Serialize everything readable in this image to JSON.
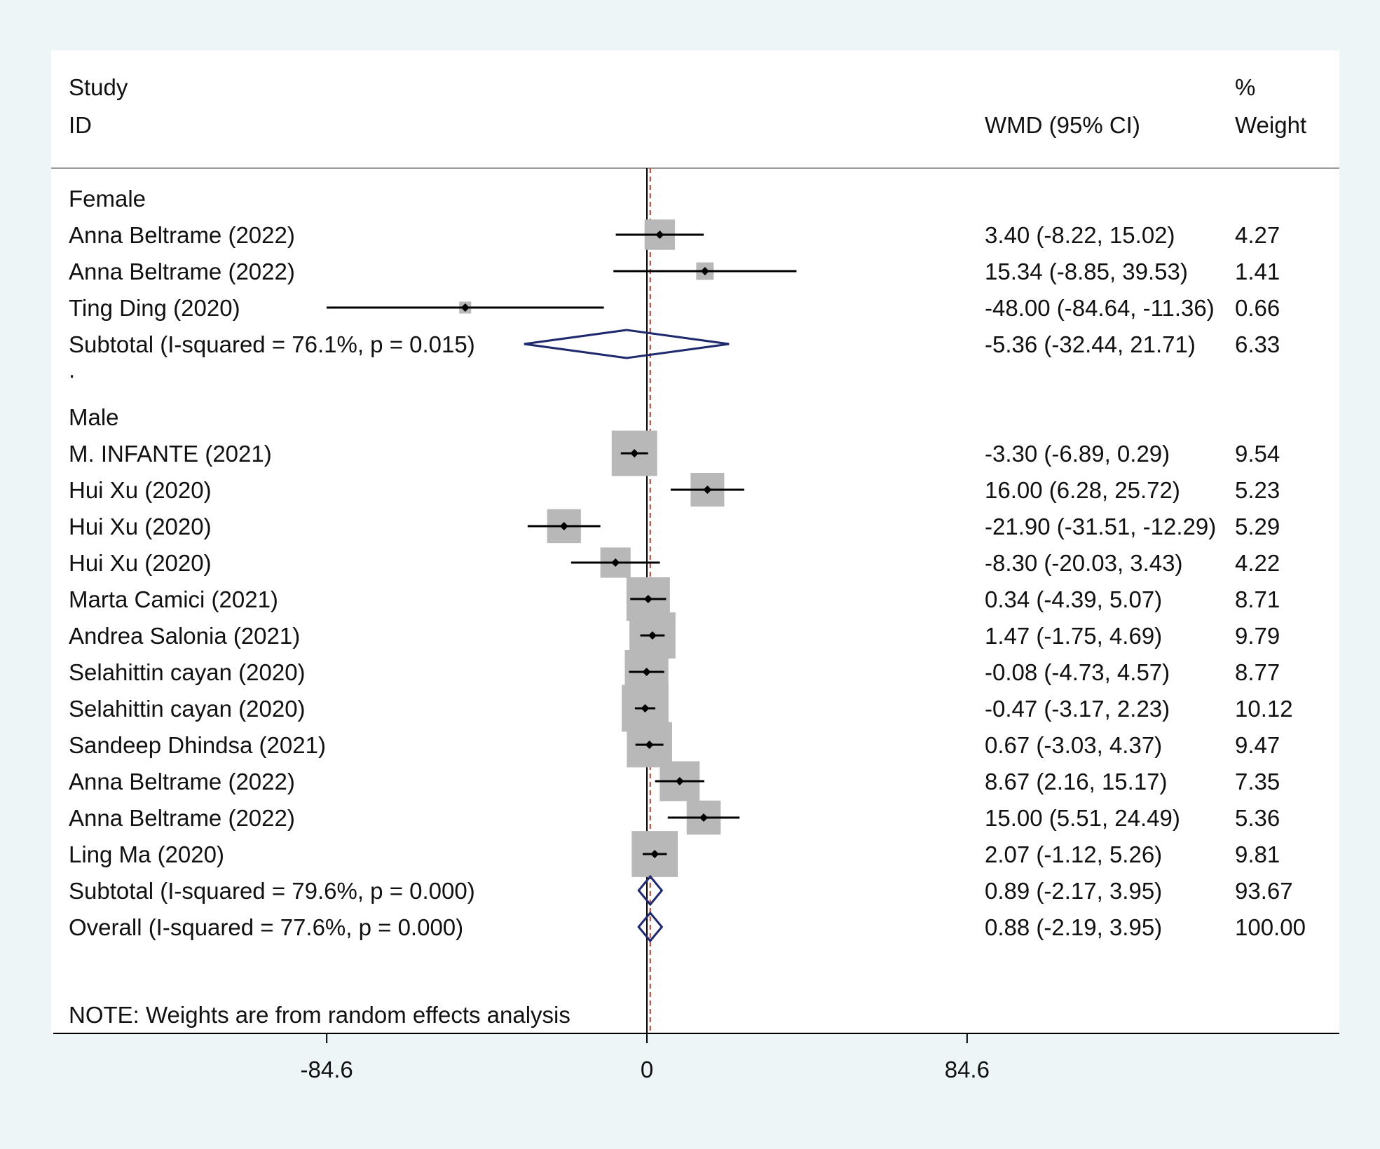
{
  "chart_data": {
    "type": "forest",
    "header": {
      "study_line1": "Study",
      "study_line2": "ID",
      "effect_label": "WMD (95% CI)",
      "weight_line1": "%",
      "weight_line2": "Weight"
    },
    "groups": [
      {
        "name": "Female",
        "studies": [
          {
            "label": "Anna Beltrame (2022)",
            "est": 3.4,
            "lo": -8.22,
            "hi": 15.02,
            "ci_text": "3.40 (-8.22, 15.02)",
            "weight": "4.27"
          },
          {
            "label": "Anna Beltrame (2022)",
            "est": 15.34,
            "lo": -8.85,
            "hi": 39.53,
            "ci_text": "15.34 (-8.85, 39.53)",
            "weight": "1.41"
          },
          {
            "label": "Ting Ding (2020)",
            "est": -48.0,
            "lo": -84.64,
            "hi": -11.36,
            "ci_text": "-48.00 (-84.64, -11.36)",
            "weight": "0.66"
          }
        ],
        "subtotal": {
          "label": "Subtotal  (I-squared = 76.1%, p = 0.015)",
          "est": -5.36,
          "lo": -32.44,
          "hi": 21.71,
          "ci_text": "-5.36 (-32.44, 21.71)",
          "weight": "6.33"
        }
      },
      {
        "name": "Male",
        "studies": [
          {
            "label": "M. INFANTE (2021)",
            "est": -3.3,
            "lo": -6.89,
            "hi": 0.29,
            "ci_text": "-3.30 (-6.89, 0.29)",
            "weight": "9.54"
          },
          {
            "label": "Hui Xu (2020)",
            "est": 16.0,
            "lo": 6.28,
            "hi": 25.72,
            "ci_text": "16.00 (6.28, 25.72)",
            "weight": "5.23"
          },
          {
            "label": "Hui Xu (2020)",
            "est": -21.9,
            "lo": -31.51,
            "hi": -12.29,
            "ci_text": "-21.90 (-31.51, -12.29)",
            "weight": "5.29"
          },
          {
            "label": "Hui Xu (2020)",
            "est": -8.3,
            "lo": -20.03,
            "hi": 3.43,
            "ci_text": "-8.30 (-20.03, 3.43)",
            "weight": "4.22"
          },
          {
            "label": "Marta Camici (2021)",
            "est": 0.34,
            "lo": -4.39,
            "hi": 5.07,
            "ci_text": "0.34 (-4.39, 5.07)",
            "weight": "8.71"
          },
          {
            "label": "Andrea Salonia (2021)",
            "est": 1.47,
            "lo": -1.75,
            "hi": 4.69,
            "ci_text": "1.47 (-1.75, 4.69)",
            "weight": "9.79"
          },
          {
            "label": "Selahittin cayan (2020)",
            "est": -0.08,
            "lo": -4.73,
            "hi": 4.57,
            "ci_text": "-0.08 (-4.73, 4.57)",
            "weight": "8.77"
          },
          {
            "label": "Selahittin cayan (2020)",
            "est": -0.47,
            "lo": -3.17,
            "hi": 2.23,
            "ci_text": "-0.47 (-3.17, 2.23)",
            "weight": "10.12"
          },
          {
            "label": "Sandeep Dhindsa (2021)",
            "est": 0.67,
            "lo": -3.03,
            "hi": 4.37,
            "ci_text": "0.67 (-3.03, 4.37)",
            "weight": "9.47"
          },
          {
            "label": "Anna Beltrame (2022)",
            "est": 8.67,
            "lo": 2.16,
            "hi": 15.17,
            "ci_text": "8.67 (2.16, 15.17)",
            "weight": "7.35"
          },
          {
            "label": "Anna Beltrame (2022)",
            "est": 15.0,
            "lo": 5.51,
            "hi": 24.49,
            "ci_text": "15.00 (5.51, 24.49)",
            "weight": "5.36"
          },
          {
            "label": "Ling Ma (2020)",
            "est": 2.07,
            "lo": -1.12,
            "hi": 5.26,
            "ci_text": "2.07 (-1.12, 5.26)",
            "weight": "9.81"
          }
        ],
        "subtotal": {
          "label": "Subtotal  (I-squared = 79.6%, p = 0.000)",
          "est": 0.89,
          "lo": -2.17,
          "hi": 3.95,
          "ci_text": "0.89 (-2.17, 3.95)",
          "weight": "93.67"
        }
      }
    ],
    "overall": {
      "label": "Overall  (I-squared = 77.6%, p = 0.000)",
      "est": 0.88,
      "lo": -2.19,
      "hi": 3.95,
      "ci_text": "0.88 (-2.19, 3.95)",
      "weight": "100.00"
    },
    "note": "NOTE: Weights are from random effects analysis",
    "xticks": [
      -84.6,
      0,
      84.6
    ],
    "xtick_labels": [
      "-84.6",
      "0",
      "84.6"
    ],
    "null_line": 0,
    "colors": {
      "background": "#eef5f6",
      "panel": "#ffffff",
      "box": "#b8b8b8",
      "diamond": "#1f2a6e",
      "overall_line": "#c0392b",
      "text": "#111111"
    }
  }
}
